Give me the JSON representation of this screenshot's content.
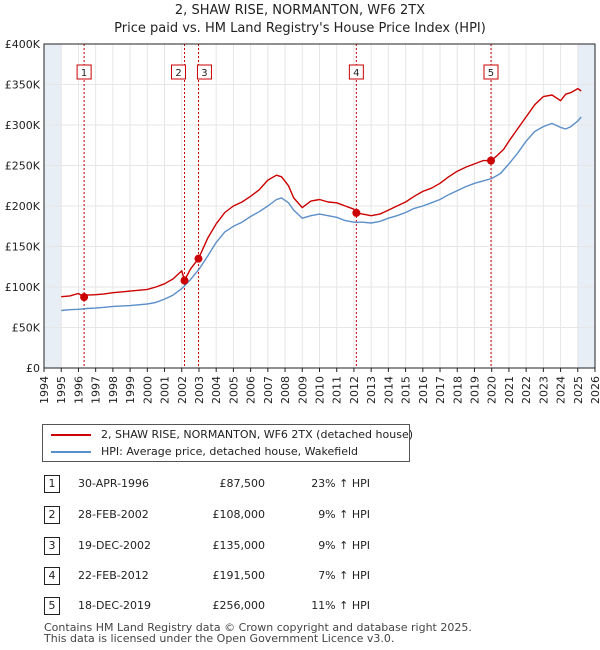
{
  "title": "2, SHAW RISE, NORMANTON, WF6 2TX",
  "subtitle": "Price paid vs. HM Land Registry's House Price Index (HPI)",
  "colors": {
    "property_line": "#cc0000",
    "hpi_line": "#5b8fc9",
    "marker_line": "#cc0000",
    "grid": "#e6e6e6",
    "shade": "#e8eef6"
  },
  "legend": {
    "property_label": "2, SHAW RISE, NORMANTON, WF6 2TX (detached house)",
    "hpi_label": "HPI: Average price, detached house, Wakefield"
  },
  "transactions": [
    {
      "num": "1",
      "date": "30-APR-1996",
      "price": "£87,500",
      "hpi": "23% ↑ HPI"
    },
    {
      "num": "2",
      "date": "28-FEB-2002",
      "price": "£108,000",
      "hpi": "9% ↑ HPI"
    },
    {
      "num": "3",
      "date": "19-DEC-2002",
      "price": "£135,000",
      "hpi": "9% ↑ HPI"
    },
    {
      "num": "4",
      "date": "22-FEB-2012",
      "price": "£191,500",
      "hpi": "7% ↑ HPI"
    },
    {
      "num": "5",
      "date": "18-DEC-2019",
      "price": "£256,000",
      "hpi": "11% ↑ HPI"
    }
  ],
  "footer": {
    "line1": "Contains HM Land Registry data © Crown copyright and database right 2025.",
    "line2": "This data is licensed under the Open Government Licence v3.0."
  },
  "chart_data": {
    "type": "line",
    "title": "2, SHAW RISE, NORMANTON, WF6 2TX",
    "subtitle": "Price paid vs. HM Land Registry's House Price Index (HPI)",
    "xlabel": "",
    "ylabel": "",
    "xlim": [
      1994,
      2026
    ],
    "ylim": [
      0,
      400000
    ],
    "x_ticks": [
      1994,
      1995,
      1996,
      1997,
      1998,
      1999,
      2000,
      2001,
      2002,
      2003,
      2004,
      2005,
      2006,
      2007,
      2008,
      2009,
      2010,
      2011,
      2012,
      2013,
      2014,
      2015,
      2016,
      2017,
      2018,
      2019,
      2020,
      2021,
      2022,
      2023,
      2024,
      2025,
      2026
    ],
    "y_ticks": [
      {
        "value": 0,
        "label": "£0"
      },
      {
        "value": 50000,
        "label": "£50K"
      },
      {
        "value": 100000,
        "label": "£100K"
      },
      {
        "value": 150000,
        "label": "£150K"
      },
      {
        "value": 200000,
        "label": "£200K"
      },
      {
        "value": 250000,
        "label": "£250K"
      },
      {
        "value": 300000,
        "label": "£300K"
      },
      {
        "value": 350000,
        "label": "£350K"
      },
      {
        "value": 400000,
        "label": "£400K"
      }
    ],
    "shaded_ranges": [
      [
        1994,
        1995.0
      ],
      [
        2025.0,
        2026
      ]
    ],
    "sales": [
      {
        "label": "1",
        "year": 1996.33,
        "price": 87500
      },
      {
        "label": "2",
        "year": 2002.16,
        "price": 108000
      },
      {
        "label": "3",
        "year": 2002.97,
        "price": 135000
      },
      {
        "label": "4",
        "year": 2012.14,
        "price": 191500
      },
      {
        "label": "5",
        "year": 2019.96,
        "price": 256000
      }
    ],
    "series": [
      {
        "name": "2, SHAW RISE, NORMANTON, WF6 2TX (detached house)",
        "x": [
          1995.0,
          1995.5,
          1996.0,
          1996.33,
          1996.5,
          1997.0,
          1997.5,
          1998.0,
          1999.0,
          2000.0,
          2000.5,
          2001.0,
          2001.5,
          2002.0,
          2002.16,
          2002.5,
          2002.97,
          2003.5,
          2004.0,
          2004.5,
          2005.0,
          2005.5,
          2006.0,
          2006.5,
          2007.0,
          2007.5,
          2007.8,
          2008.2,
          2008.5,
          2009.0,
          2009.5,
          2010.0,
          2010.5,
          2011.0,
          2011.5,
          2012.0,
          2012.14,
          2012.5,
          2013.0,
          2013.5,
          2014.0,
          2014.5,
          2015.0,
          2015.5,
          2016.0,
          2016.5,
          2017.0,
          2017.5,
          2018.0,
          2018.5,
          2019.0,
          2019.5,
          2019.96,
          2020.3,
          2020.7,
          2021.0,
          2021.5,
          2022.0,
          2022.5,
          2023.0,
          2023.5,
          2024.0,
          2024.3,
          2024.6,
          2025.0,
          2025.2
        ],
        "y": [
          88000,
          89000,
          92000,
          87500,
          90000,
          90500,
          91500,
          93000,
          95000,
          97000,
          100000,
          104000,
          110000,
          120000,
          108000,
          122000,
          135000,
          160000,
          178000,
          192000,
          200000,
          205000,
          212000,
          220000,
          232000,
          238000,
          236000,
          225000,
          210000,
          198000,
          206000,
          208000,
          205000,
          204000,
          200000,
          196000,
          191500,
          190000,
          188000,
          190000,
          195000,
          200000,
          205000,
          212000,
          218000,
          222000,
          228000,
          236000,
          243000,
          248000,
          252000,
          256000,
          256000,
          262000,
          270000,
          280000,
          295000,
          310000,
          325000,
          335000,
          337000,
          330000,
          338000,
          340000,
          345000,
          342000
        ]
      },
      {
        "name": "HPI: Average price, detached house, Wakefield",
        "x": [
          1995.0,
          1995.5,
          1996.0,
          1996.5,
          1997.0,
          1997.5,
          1998.0,
          1999.0,
          2000.0,
          2000.5,
          2001.0,
          2001.5,
          2002.0,
          2002.5,
          2003.0,
          2003.5,
          2004.0,
          2004.5,
          2005.0,
          2005.5,
          2006.0,
          2006.5,
          2007.0,
          2007.5,
          2007.8,
          2008.2,
          2008.5,
          2009.0,
          2009.5,
          2010.0,
          2010.5,
          2011.0,
          2011.5,
          2012.0,
          2012.5,
          2013.0,
          2013.5,
          2014.0,
          2014.5,
          2015.0,
          2015.5,
          2016.0,
          2016.5,
          2017.0,
          2017.5,
          2018.0,
          2018.5,
          2019.0,
          2019.5,
          2020.0,
          2020.5,
          2021.0,
          2021.5,
          2022.0,
          2022.5,
          2023.0,
          2023.5,
          2024.0,
          2024.3,
          2024.6,
          2025.0,
          2025.2
        ],
        "y": [
          71000,
          72000,
          72500,
          73500,
          74000,
          75000,
          76000,
          77000,
          79000,
          81000,
          85000,
          90000,
          98000,
          109000,
          122000,
          138000,
          155000,
          168000,
          175000,
          180000,
          187000,
          193000,
          200000,
          208000,
          210000,
          204000,
          195000,
          185000,
          188000,
          190000,
          188000,
          186000,
          182000,
          180000,
          180000,
          179000,
          181000,
          185000,
          188000,
          192000,
          197000,
          200000,
          204000,
          208000,
          214000,
          219000,
          224000,
          228000,
          231000,
          234000,
          240000,
          252000,
          265000,
          280000,
          292000,
          298000,
          302000,
          297000,
          295000,
          298000,
          305000,
          310000
        ]
      }
    ]
  }
}
